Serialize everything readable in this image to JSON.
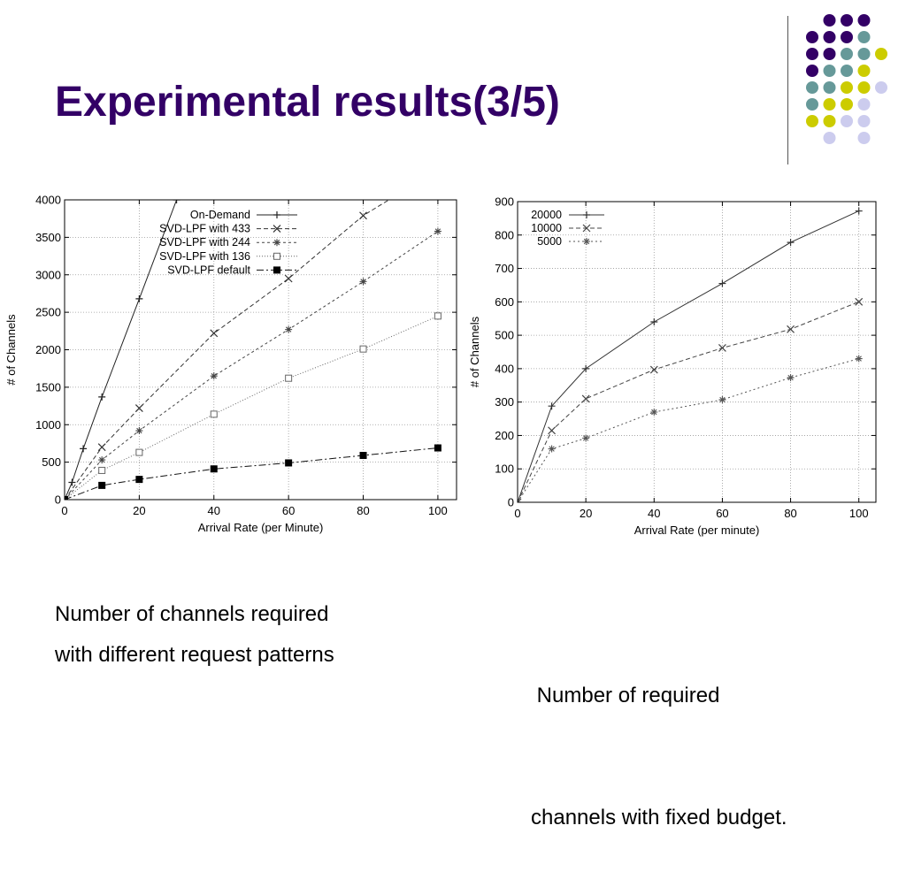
{
  "slide": {
    "title": "Experimental results(3/5)",
    "caption_left": [
      "Number of channels required",
      "with different request patterns"
    ],
    "caption_right": [
      " Number of required",
      "channels with fixed budget."
    ],
    "colors": {
      "title": "#330066",
      "dot_purple": "#330066",
      "dot_teal": "#669999",
      "dot_yellow": "#cccc00",
      "dot_lavender": "#ccccee"
    }
  },
  "chart_data": [
    {
      "type": "line",
      "xlabel": "Arrival Rate (per Minute)",
      "ylabel": "# of Channels",
      "xlim": [
        0,
        105
      ],
      "ylim": [
        0,
        4000
      ],
      "xticks": [
        0,
        20,
        40,
        60,
        80,
        100
      ],
      "yticks": [
        0,
        500,
        1000,
        1500,
        2000,
        2500,
        3000,
        3500,
        4000
      ],
      "grid": true,
      "legend_position": "top-left",
      "series": [
        {
          "name": "On-Demand",
          "marker": "plus",
          "dash": "",
          "x": [
            0,
            2,
            5,
            10,
            20,
            30
          ],
          "y": [
            0,
            230,
            680,
            1370,
            2680,
            4000
          ]
        },
        {
          "name": "SVD-LPF with 433",
          "marker": "x",
          "dash": "5,3",
          "x": [
            0,
            10,
            20,
            40,
            60,
            80,
            100
          ],
          "y": [
            0,
            700,
            1220,
            2220,
            2950,
            3790,
            4400
          ]
        },
        {
          "name": "SVD-LPF with 244",
          "marker": "star",
          "dash": "3,3",
          "x": [
            0,
            10,
            20,
            40,
            60,
            80,
            100
          ],
          "y": [
            0,
            530,
            920,
            1650,
            2270,
            2910,
            3580
          ]
        },
        {
          "name": "SVD-LPF with 136",
          "marker": "square",
          "dash": "1,2",
          "x": [
            0,
            10,
            20,
            40,
            60,
            80,
            100
          ],
          "y": [
            0,
            390,
            630,
            1140,
            1620,
            2010,
            2450
          ]
        },
        {
          "name": "SVD-LPF default",
          "marker": "filled-square",
          "dash": "8,3,2,3",
          "x": [
            0,
            10,
            20,
            40,
            60,
            80,
            100
          ],
          "y": [
            0,
            190,
            270,
            410,
            490,
            590,
            690
          ]
        }
      ]
    },
    {
      "type": "line",
      "xlabel": "Arrival Rate (per minute)",
      "ylabel": "# of Channels",
      "xlim": [
        0,
        105
      ],
      "ylim": [
        0,
        900
      ],
      "xticks": [
        0,
        20,
        40,
        60,
        80,
        100
      ],
      "yticks": [
        0,
        100,
        200,
        300,
        400,
        500,
        600,
        700,
        800,
        900
      ],
      "grid": true,
      "legend_position": "top-left",
      "series": [
        {
          "name": "20000",
          "marker": "plus",
          "dash": "",
          "x": [
            0,
            10,
            20,
            40,
            60,
            80,
            100
          ],
          "y": [
            0,
            288,
            400,
            540,
            655,
            778,
            872
          ]
        },
        {
          "name": "10000",
          "marker": "x",
          "dash": "5,3",
          "x": [
            0,
            10,
            20,
            40,
            60,
            80,
            100
          ],
          "y": [
            0,
            215,
            310,
            397,
            462,
            518,
            600
          ]
        },
        {
          "name": "5000",
          "marker": "star",
          "dash": "2,3",
          "x": [
            0,
            10,
            20,
            40,
            60,
            80,
            100
          ],
          "y": [
            0,
            160,
            192,
            270,
            307,
            373,
            430
          ]
        }
      ]
    }
  ]
}
